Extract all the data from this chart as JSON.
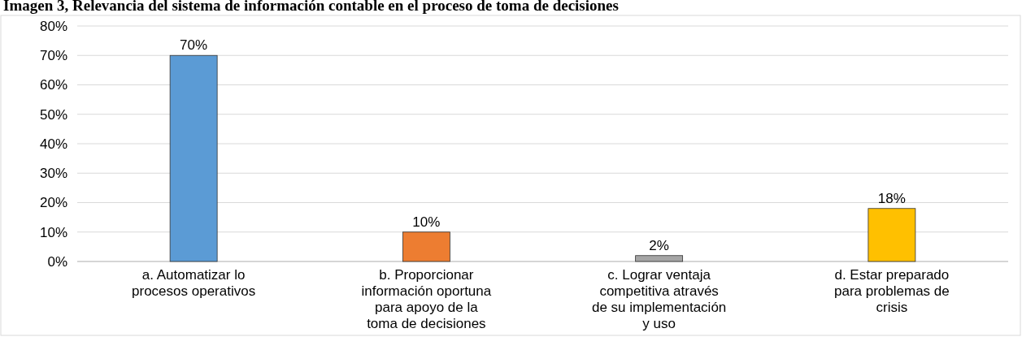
{
  "chart_data": {
    "type": "bar",
    "title": "Imagen 3, Relevancia del sistema de información contable en el proceso de toma de decisiones",
    "categories": [
      "a. Automatizar lo procesos operativos",
      "b. Proporcionar información oportuna para apoyo de la toma de decisiones",
      "c. Lograr ventaja competitiva através de su implementación y uso",
      "d. Estar preparado para problemas de crisis"
    ],
    "values": [
      70,
      10,
      2,
      18
    ],
    "colors": [
      "#5b9bd5",
      "#ed7d31",
      "#a5a5a5",
      "#ffc000"
    ],
    "ylim": [
      0,
      80
    ],
    "yticks": [
      {
        "value": 0,
        "label": "0%"
      },
      {
        "value": 10,
        "label": "10%"
      },
      {
        "value": 20,
        "label": "20%"
      },
      {
        "value": 30,
        "label": "30%"
      },
      {
        "value": 40,
        "label": "40%"
      },
      {
        "value": 50,
        "label": "50%"
      },
      {
        "value": 60,
        "label": "60%"
      },
      {
        "value": 70,
        "label": "70%"
      },
      {
        "value": 80,
        "label": "80%"
      }
    ],
    "value_labels": [
      "70%",
      "10%",
      "2%",
      "18%"
    ],
    "grid": "y"
  }
}
